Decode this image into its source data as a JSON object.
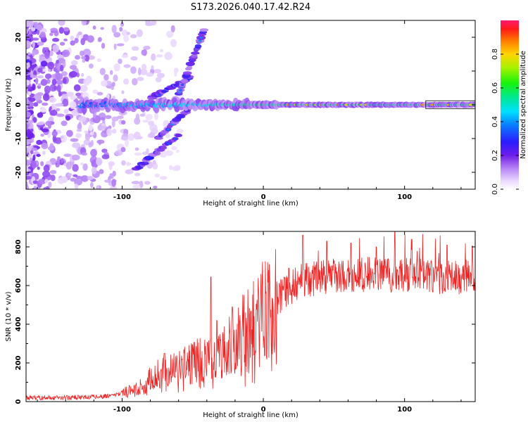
{
  "title": "S173.2026.040.17.42.R24",
  "colors": {
    "line": "#ee2222",
    "frame": "#000000",
    "background": "#ffffff"
  },
  "chart_data": [
    {
      "type": "heatmap",
      "xlabel": "Height of straight line (km)",
      "ylabel": "Frequency (Hz)",
      "xlim": [
        -168,
        150
      ],
      "ylim": [
        -25,
        25
      ],
      "xticks": [
        -100,
        0,
        100
      ],
      "yticks": [
        -20,
        -10,
        0,
        10,
        20
      ],
      "x_tick_labels": [
        "-100",
        "0",
        "100"
      ],
      "y_tick_labels": [
        "-20",
        "-10",
        "0",
        "10",
        "20"
      ],
      "colorbar": {
        "label": "Normalized spectral amplitude",
        "range": [
          0,
          1
        ],
        "ticks": [
          0.0,
          0.2,
          0.4,
          0.6,
          0.8
        ],
        "tick_labels": [
          "0.0",
          "0.2",
          "0.4",
          "0.6",
          "0.8"
        ]
      },
      "features": [
        {
          "name": "main-doppler-band",
          "x_range": [
            -130,
            150
          ],
          "freq_hz": 0,
          "peak_amplitude": 0.85
        },
        {
          "name": "upper-streak-1",
          "x_from": -80,
          "x_to": -52,
          "f_from": 2,
          "f_to": 8
        },
        {
          "name": "upper-streak-2",
          "x_from": -60,
          "x_to": -42,
          "f_from": 3,
          "f_to": 22
        },
        {
          "name": "lower-streak-1",
          "x_from": -75,
          "x_to": -50,
          "f_from": -10,
          "f_to": 0
        },
        {
          "name": "lower-streak-2",
          "x_from": -90,
          "x_to": -60,
          "f_from": -19,
          "f_to": -9
        }
      ]
    },
    {
      "type": "line",
      "xlabel": "Height of straight line (km)",
      "ylabel": "SNR (10 * v/v)",
      "xlim": [
        -168,
        150
      ],
      "ylim": [
        0,
        880
      ],
      "xticks": [
        -100,
        0,
        100
      ],
      "yticks": [
        0,
        200,
        400,
        600,
        800
      ],
      "x_tick_labels": [
        "-100",
        "0",
        "100"
      ],
      "y_tick_labels": [
        "0",
        "200",
        "400",
        "600",
        "800"
      ],
      "series": [
        {
          "name": "SNR",
          "x": [
            -168,
            -150,
            -130,
            -110,
            -100,
            -95,
            -90,
            -85,
            -80,
            -75,
            -70,
            -65,
            -60,
            -55,
            -50,
            -45,
            -40,
            -35,
            -30,
            -25,
            -20,
            -15,
            -10,
            -5,
            0,
            5,
            10,
            15,
            20,
            25,
            30,
            40,
            50,
            60,
            70,
            80,
            90,
            100,
            110,
            120,
            130,
            140,
            150
          ],
          "values": [
            20,
            20,
            22,
            28,
            45,
            55,
            70,
            95,
            115,
            140,
            150,
            160,
            170,
            185,
            200,
            215,
            230,
            245,
            265,
            290,
            320,
            360,
            405,
            440,
            470,
            500,
            530,
            560,
            590,
            615,
            630,
            640,
            650,
            655,
            655,
            660,
            650,
            655,
            650,
            645,
            640,
            645,
            650
          ]
        }
      ],
      "spikes": [
        {
          "x": -70,
          "value": 250
        },
        {
          "x": -37,
          "value": 645
        },
        {
          "x": -33,
          "value": 420
        },
        {
          "x": -22,
          "value": 490
        },
        {
          "x": 18,
          "value": 690
        },
        {
          "x": 28,
          "value": 860
        },
        {
          "x": 45,
          "value": 830
        },
        {
          "x": 62,
          "value": 820
        },
        {
          "x": 80,
          "value": 800
        },
        {
          "x": 93,
          "value": 880
        },
        {
          "x": 105,
          "value": 840
        },
        {
          "x": 130,
          "value": 810
        },
        {
          "x": 148,
          "value": 805
        }
      ]
    }
  ]
}
